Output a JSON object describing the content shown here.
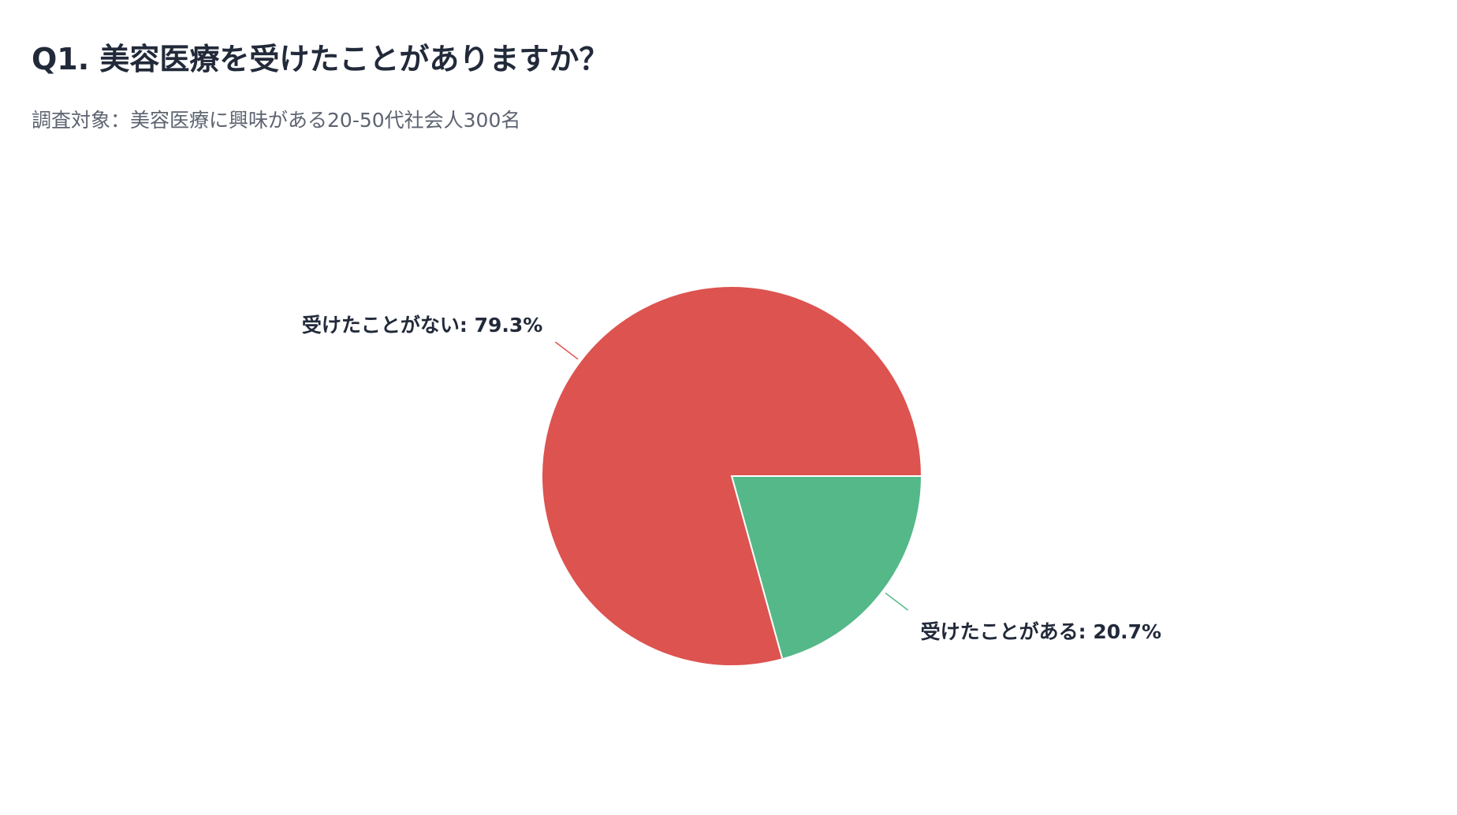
{
  "chart_data": {
    "type": "pie",
    "title": "Q1. 美容医療を受けたことがありますか？",
    "subtitle": "調査対象：美容医療に興味がある20-50代社会人300名",
    "slices": [
      {
        "label": "受けたことがある",
        "value": 20.7,
        "display": "受けたことがある: 20.7%",
        "color": "#55b888"
      },
      {
        "label": "受けたことがない",
        "value": 79.3,
        "display": "受けたことがない: 79.3%",
        "color": "#dd534f"
      }
    ],
    "start_angle_deg": 0,
    "direction": "clockwise",
    "legend": "none"
  }
}
